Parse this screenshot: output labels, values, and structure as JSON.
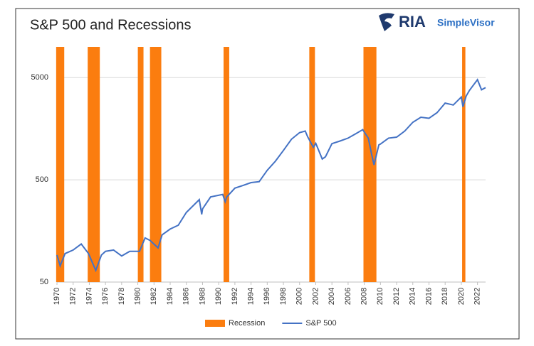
{
  "logo": {
    "name": "RIA",
    "product": "SimpleVisor"
  },
  "chart_data": {
    "type": "line",
    "title": "S&P 500 and Recessions",
    "log_scale": true,
    "grid": true,
    "legend": "bottom",
    "xlim": [
      1970,
      2023
    ],
    "xticks": [
      1970,
      1972,
      1974,
      1976,
      1978,
      1980,
      1982,
      1984,
      1986,
      1988,
      1990,
      1992,
      1994,
      1996,
      1998,
      2000,
      2002,
      2004,
      2006,
      2008,
      2010,
      2012,
      2014,
      2016,
      2018,
      2020,
      2022
    ],
    "ylim": [
      50,
      10000
    ],
    "yticks": [
      50,
      500,
      5000
    ],
    "x": [
      1970.0,
      1970.4,
      1971,
      1972,
      1973,
      1973.9,
      1974.8,
      1975.5,
      1976,
      1977,
      1978,
      1979,
      1980.2,
      1980.9,
      1981.5,
      1982.5,
      1983,
      1984,
      1985,
      1986,
      1987.6,
      1987.9,
      1988,
      1989,
      1990.5,
      1990.8,
      1991,
      1992,
      1993,
      1994,
      1995,
      1996,
      1997,
      1998,
      1999,
      2000,
      2000.7,
      2001,
      2001.7,
      2002,
      2002.8,
      2003.2,
      2004,
      2005,
      2006,
      2007,
      2007.8,
      2008.5,
      2008.9,
      2009.2,
      2009.8,
      2010,
      2011,
      2012,
      2013,
      2014,
      2015,
      2016,
      2017,
      2018,
      2019,
      2020,
      2020.2,
      2020.6,
      2021,
      2022,
      2022.5,
      2023
    ],
    "series": [
      {
        "name": "Recession",
        "color": "#fb7d0f",
        "spans": [
          [
            1969.9,
            1970.9
          ],
          [
            1973.8,
            1975.3
          ],
          [
            1980.0,
            1980.7
          ],
          [
            1981.5,
            1982.9
          ],
          [
            1990.6,
            1991.3
          ],
          [
            2001.2,
            2001.9
          ],
          [
            2007.9,
            2009.5
          ],
          [
            2020.1,
            2020.5
          ]
        ]
      },
      {
        "name": "S&P 500",
        "color": "#4472c4",
        "values": [
          92,
          72,
          95,
          103,
          118,
          95,
          65,
          92,
          100,
          103,
          90,
          100,
          100,
          135,
          128,
          108,
          145,
          165,
          180,
          240,
          320,
          230,
          260,
          340,
          360,
          305,
          340,
          415,
          440,
          470,
          480,
          620,
          760,
          970,
          1250,
          1450,
          1500,
          1320,
          1040,
          1140,
          800,
          840,
          1130,
          1200,
          1280,
          1420,
          1550,
          1280,
          900,
          700,
          1100,
          1120,
          1280,
          1310,
          1500,
          1830,
          2050,
          2000,
          2270,
          2820,
          2700,
          3230,
          2600,
          3300,
          3750,
          4770,
          3800,
          4000
        ]
      }
    ]
  }
}
